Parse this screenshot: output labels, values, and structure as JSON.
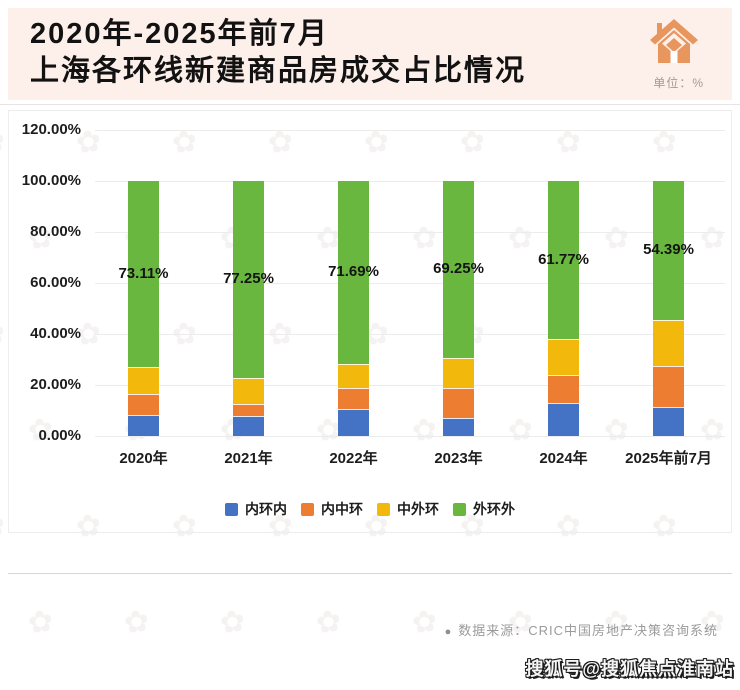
{
  "header": {
    "title_line1": "2020年-2025年前7月",
    "title_line2": "上海各环线新建商品房成交占比情况",
    "unit_label": "单位：%"
  },
  "chart_data": {
    "type": "bar",
    "stacked": true,
    "title": "2020年-2025年前7月上海各环线新建商品房成交占比情况",
    "unit": "%",
    "categories": [
      "2020年",
      "2021年",
      "2022年",
      "2023年",
      "2024年",
      "2025年前7月"
    ],
    "series": [
      {
        "key": "inner-ring",
        "name": "内环内",
        "color": "#4472c4",
        "values": [
          8.4,
          7.7,
          10.4,
          7.0,
          12.8,
          11.2
        ]
      },
      {
        "key": "inner-middle-ring",
        "name": "内中环",
        "color": "#ed7d31",
        "values": [
          7.9,
          5.0,
          8.3,
          11.7,
          11.0,
          16.3
        ]
      },
      {
        "key": "middle-outer-ring",
        "name": "中外环",
        "color": "#f2b80c",
        "values": [
          10.59,
          10.05,
          9.61,
          12.05,
          14.43,
          18.11
        ]
      },
      {
        "key": "outer-ring",
        "name": "外环外",
        "color": "#6ab73f",
        "values": [
          73.11,
          77.25,
          71.69,
          69.25,
          61.77,
          54.39
        ]
      }
    ],
    "data_labels": [
      "73.11%",
      "77.25%",
      "71.69%",
      "69.25%",
      "61.77%",
      "54.39%"
    ],
    "y_ticks": [
      "120.00%",
      "100.00%",
      "80.00%",
      "60.00%",
      "40.00%",
      "20.00%",
      "0.00%"
    ],
    "ylim": [
      0,
      120
    ],
    "grid": true,
    "legend_position": "bottom"
  },
  "footer": {
    "bullet": "●",
    "source": "数据来源：CRIC中国房地产决策咨询系统",
    "watermark": "搜狐号@搜狐焦点淮南站"
  }
}
